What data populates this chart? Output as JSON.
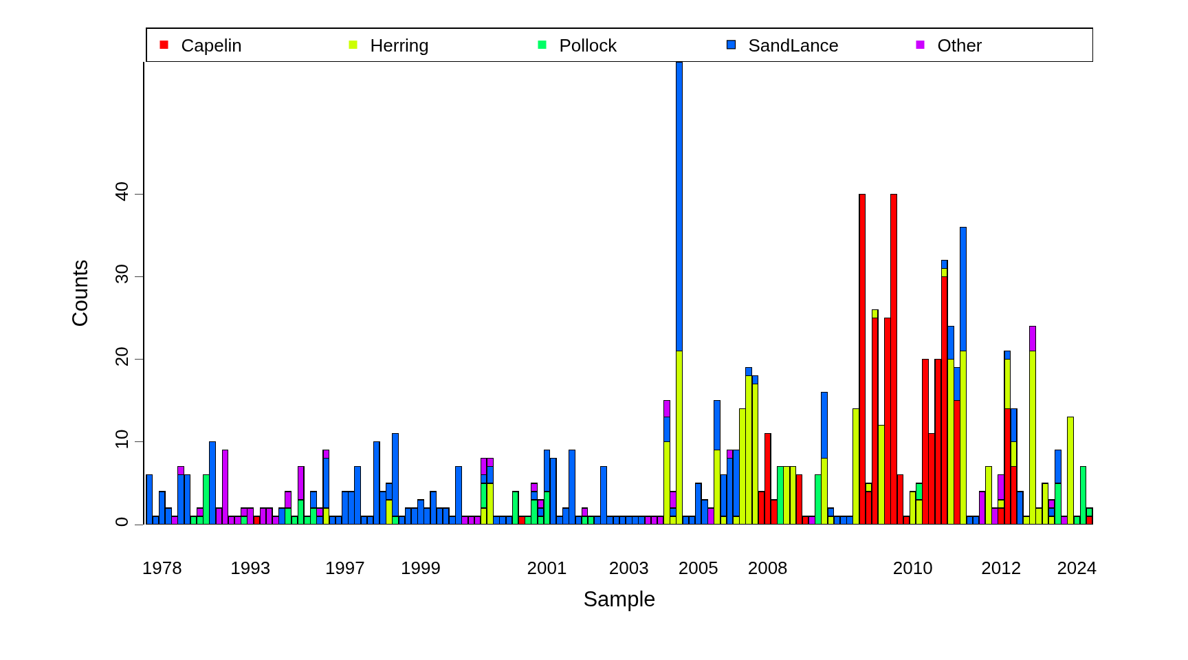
{
  "chart_data": {
    "type": "bar",
    "stacked": true,
    "xlabel": "Sample",
    "ylabel": "Counts",
    "categories": [
      null,
      null,
      "1978",
      null,
      null,
      null,
      null,
      null,
      null,
      null,
      null,
      null,
      null,
      null,
      null,
      null,
      "1993",
      null,
      null,
      null,
      null,
      null,
      null,
      null,
      null,
      null,
      null,
      null,
      null,
      null,
      null,
      "1997",
      null,
      null,
      null,
      null,
      null,
      null,
      null,
      null,
      null,
      null,
      null,
      "1999",
      null,
      null,
      null,
      null,
      null,
      null,
      null,
      null,
      null,
      null,
      null,
      null,
      null,
      null,
      null,
      null,
      null,
      null,
      null,
      "2001",
      null,
      null,
      null,
      null,
      null,
      null,
      null,
      null,
      null,
      null,
      null,
      null,
      "2003",
      null,
      null,
      null,
      null,
      null,
      null,
      null,
      null,
      null,
      null,
      "2005",
      null,
      null,
      null,
      null,
      null,
      null,
      null,
      null,
      null,
      null,
      "2008",
      null,
      null,
      null,
      null,
      null,
      null,
      null,
      null,
      null,
      null,
      null,
      null,
      null,
      null,
      null,
      null,
      null,
      null,
      null,
      null,
      null,
      null,
      "2010",
      null,
      null,
      null,
      null,
      null,
      null,
      null,
      null,
      null,
      null,
      null,
      null,
      null,
      "2012",
      null,
      null,
      null,
      null,
      null,
      null,
      null,
      null,
      null,
      null,
      null,
      "2024",
      null,
      null
    ],
    "series": [
      {
        "name": "Capelin",
        "color": "#ff0000",
        "values": [
          0,
          0,
          0,
          0,
          0,
          0,
          0,
          0,
          0,
          0,
          0,
          0,
          0,
          0,
          0,
          0,
          0,
          1,
          0,
          0,
          0,
          0,
          0,
          0,
          0,
          0,
          0,
          0,
          0,
          0,
          0,
          0,
          0,
          0,
          0,
          0,
          0,
          0,
          0,
          0,
          0,
          0,
          0,
          0,
          0,
          0,
          0,
          0,
          0,
          0,
          0,
          0,
          0,
          0,
          0,
          0,
          0,
          0,
          0,
          1,
          0,
          0,
          0,
          0,
          0,
          0,
          0,
          0,
          0,
          0,
          0,
          0,
          0,
          0,
          0,
          0,
          0,
          0,
          0,
          0,
          0,
          0,
          0,
          0,
          0,
          0,
          0,
          0,
          0,
          0,
          0,
          0,
          0,
          0,
          0,
          0,
          0,
          4,
          11,
          3,
          0,
          0,
          0,
          6,
          1,
          0,
          0,
          0,
          0,
          0,
          0,
          0,
          0,
          40,
          4,
          25,
          0,
          25,
          40,
          6,
          1,
          0,
          0,
          20,
          11,
          20,
          30,
          0,
          15,
          0,
          0,
          0,
          0,
          0,
          0,
          2,
          14,
          7,
          0,
          0,
          0,
          0,
          0,
          0,
          0,
          0,
          0,
          0,
          0,
          1
        ]
      },
      {
        "name": "Herring",
        "color": "#ccff00",
        "values": [
          0,
          0,
          0,
          0,
          0,
          0,
          0,
          0,
          0,
          0,
          0,
          0,
          0,
          0,
          0,
          0,
          0,
          0,
          0,
          0,
          0,
          0,
          0,
          0,
          0,
          0,
          0,
          0,
          2,
          0,
          0,
          0,
          0,
          0,
          0,
          0,
          0,
          0,
          3,
          0,
          0,
          0,
          0,
          0,
          0,
          0,
          0,
          0,
          0,
          0,
          0,
          0,
          0,
          2,
          5,
          0,
          0,
          0,
          0,
          0,
          0,
          0,
          0,
          0,
          0,
          0,
          0,
          0,
          0,
          0,
          0,
          0,
          0,
          0,
          0,
          0,
          0,
          0,
          0,
          0,
          0,
          0,
          10,
          1,
          21,
          0,
          0,
          0,
          0,
          0,
          9,
          1,
          0,
          1,
          14,
          18,
          17,
          0,
          0,
          0,
          0,
          7,
          7,
          0,
          0,
          0,
          0,
          8,
          1,
          0,
          0,
          0,
          14,
          0,
          1,
          1,
          12,
          0,
          0,
          0,
          0,
          4,
          3,
          0,
          0,
          0,
          1,
          20,
          0,
          21,
          0,
          0,
          0,
          7,
          0,
          1,
          6,
          3,
          0,
          1,
          21,
          2,
          5,
          1,
          0,
          0,
          13,
          0,
          0,
          0
        ]
      },
      {
        "name": "Pollock",
        "color": "#00ff66",
        "values": [
          0,
          0,
          0,
          0,
          0,
          0,
          0,
          1,
          1,
          6,
          0,
          0,
          0,
          0,
          0,
          1,
          0,
          0,
          0,
          0,
          0,
          0,
          2,
          1,
          3,
          1,
          2,
          0,
          0,
          0,
          0,
          0,
          0,
          0,
          0,
          0,
          0,
          0,
          0,
          1,
          0,
          0,
          0,
          0,
          0,
          0,
          0,
          0,
          0,
          0,
          0,
          0,
          0,
          3,
          0,
          0,
          0,
          0,
          4,
          0,
          1,
          3,
          1,
          4,
          0,
          0,
          0,
          0,
          0,
          1,
          1,
          0,
          0,
          0,
          0,
          0,
          0,
          0,
          0,
          0,
          0,
          0,
          0,
          0,
          0,
          0,
          0,
          0,
          0,
          0,
          0,
          0,
          0,
          0,
          0,
          0,
          0,
          0,
          0,
          0,
          7,
          0,
          0,
          0,
          0,
          0,
          6,
          0,
          0,
          0,
          0,
          0,
          0,
          0,
          0,
          0,
          0,
          0,
          0,
          0,
          0,
          0,
          2,
          0,
          0,
          0,
          0,
          0,
          0,
          0,
          0,
          0,
          0,
          0,
          0,
          0,
          0,
          0,
          0,
          0,
          0,
          0,
          0,
          0,
          5,
          0,
          0,
          1,
          7,
          1
        ]
      },
      {
        "name": "SandLance",
        "color": "#0066ff",
        "values": [
          6,
          1,
          4,
          2,
          0,
          6,
          6,
          0,
          0,
          0,
          10,
          0,
          0,
          0,
          0,
          0,
          0,
          0,
          0,
          0,
          0,
          2,
          0,
          0,
          0,
          0,
          2,
          1,
          6,
          1,
          1,
          4,
          4,
          7,
          1,
          1,
          10,
          4,
          2,
          10,
          1,
          2,
          2,
          3,
          2,
          4,
          2,
          2,
          1,
          7,
          0,
          0,
          0,
          1,
          2,
          1,
          1,
          1,
          0,
          0,
          0,
          1,
          1,
          5,
          8,
          1,
          2,
          9,
          1,
          0,
          0,
          1,
          7,
          1,
          1,
          1,
          1,
          1,
          1,
          0,
          0,
          0,
          3,
          1,
          35,
          1,
          1,
          5,
          3,
          0,
          6,
          5,
          8,
          8,
          0,
          1,
          1,
          0,
          0,
          0,
          0,
          0,
          0,
          0,
          0,
          0,
          0,
          8,
          1,
          1,
          1,
          1,
          0,
          0,
          0,
          0,
          0,
          0,
          0,
          0,
          0,
          0,
          0,
          0,
          0,
          0,
          1,
          4,
          4,
          15,
          1,
          1,
          0,
          0,
          0,
          0,
          1,
          4,
          4,
          0,
          0,
          0,
          0,
          1,
          4,
          0,
          0,
          0,
          0,
          0
        ]
      },
      {
        "name": "Other",
        "color": "#cc00ff",
        "values": [
          0,
          0,
          0,
          0,
          1,
          1,
          0,
          0,
          1,
          0,
          0,
          2,
          9,
          1,
          1,
          1,
          2,
          0,
          2,
          2,
          1,
          0,
          2,
          0,
          4,
          0,
          0,
          1,
          1,
          0,
          0,
          0,
          0,
          0,
          0,
          0,
          0,
          0,
          0,
          0,
          0,
          0,
          0,
          0,
          0,
          0,
          0,
          0,
          0,
          0,
          1,
          1,
          1,
          2,
          1,
          0,
          0,
          0,
          0,
          0,
          0,
          1,
          1,
          0,
          0,
          0,
          0,
          0,
          0,
          1,
          0,
          0,
          0,
          0,
          0,
          0,
          0,
          0,
          0,
          1,
          1,
          1,
          2,
          2,
          0,
          0,
          0,
          0,
          0,
          2,
          0,
          0,
          1,
          0,
          0,
          0,
          0,
          0,
          0,
          0,
          0,
          0,
          0,
          0,
          0,
          1,
          0,
          0,
          0,
          0,
          0,
          0,
          0,
          0,
          0,
          0,
          0,
          0,
          0,
          0,
          0,
          0,
          0,
          0,
          0,
          0,
          0,
          0,
          0,
          0,
          0,
          0,
          4,
          0,
          2,
          3,
          0,
          0,
          0,
          0,
          3,
          0,
          0,
          1,
          0,
          1,
          0,
          0,
          0,
          0
        ]
      }
    ],
    "ylim": [
      0,
      56
    ],
    "yticks": [
      0,
      10,
      20,
      30,
      40
    ],
    "legend": "top"
  }
}
